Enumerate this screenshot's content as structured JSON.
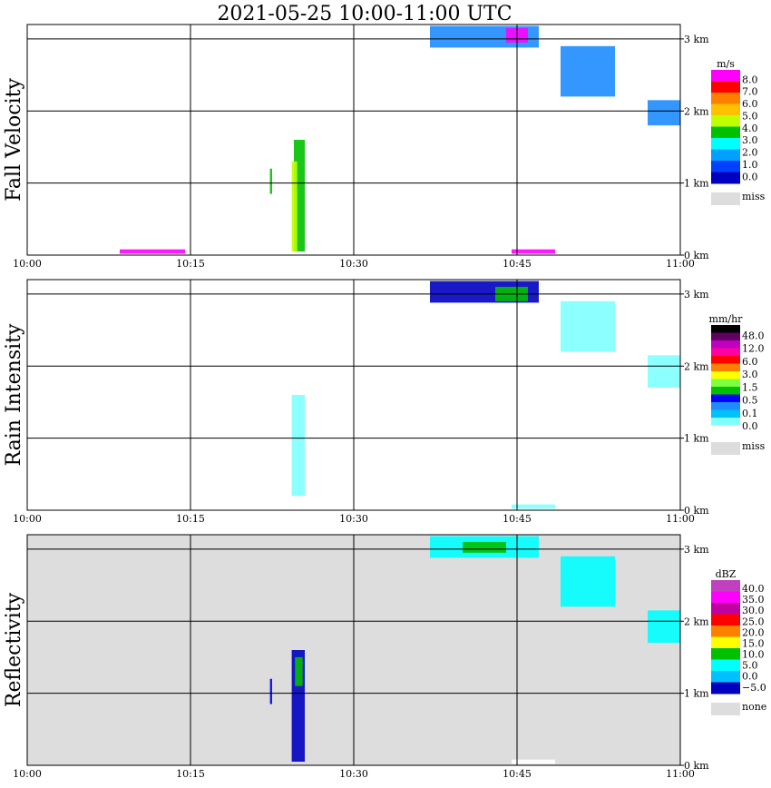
{
  "title": "2021-05-25  10:00-11:00 UTC",
  "chart_data": [
    {
      "type": "heatmap",
      "title": "Fall Velocity",
      "x_ticks": [
        "10:00",
        "10:15",
        "10:30",
        "10:45",
        "11:00"
      ],
      "xlim": [
        "10:00",
        "11:00"
      ],
      "y_ticks": [
        "0 km",
        "1 km",
        "2 km",
        "3 km"
      ],
      "ylim_km": [
        0,
        3.2
      ],
      "grid": true,
      "background": "#ffffff",
      "legend_position": "right",
      "colorbar": {
        "unit": "m/s",
        "labels": [
          "8.0",
          "7.0",
          "6.0",
          "5.0",
          "4.0",
          "3.0",
          "2.0",
          "1.0",
          "0.0"
        ],
        "colors": [
          "#ff00ff",
          "#ff0000",
          "#ff8000",
          "#ffc000",
          "#c0ff00",
          "#00c000",
          "#00ffff",
          "#00a0ff",
          "#0040ff",
          "#0000c0"
        ],
        "miss_label": "miss",
        "miss_color": "#dddddd"
      },
      "echoes": [
        {
          "t": 37,
          "h0": 2.88,
          "h1": 3.18,
          "t1": 47,
          "color": "#1e8cff"
        },
        {
          "t": 44,
          "h0": 2.95,
          "h1": 3.15,
          "t1": 46,
          "color": "#ff00ff"
        },
        {
          "t": 49,
          "h0": 2.2,
          "h1": 2.9,
          "t1": 54,
          "color": "#1e8cff"
        },
        {
          "t": 57,
          "h0": 1.8,
          "h1": 2.15,
          "t1": 60,
          "color": "#1e8cff"
        },
        {
          "t": 24.5,
          "h0": 0.05,
          "h1": 1.6,
          "t1": 25.5,
          "color": "#00c000"
        },
        {
          "t": 24.3,
          "h0": 0.05,
          "h1": 1.3,
          "t1": 24.8,
          "color": "#c0ff00"
        },
        {
          "t": 22.3,
          "h0": 0.85,
          "h1": 1.2,
          "t1": 22.5,
          "color": "#00c000"
        },
        {
          "t": 44.5,
          "h0": 0.02,
          "h1": 0.08,
          "t1": 48.5,
          "color": "#ff00ff"
        },
        {
          "t": 8.5,
          "h0": 0.02,
          "h1": 0.08,
          "t1": 14.5,
          "color": "#ff00ff"
        }
      ]
    },
    {
      "type": "heatmap",
      "title": "Rain Intensity",
      "x_ticks": [
        "10:00",
        "10:15",
        "10:30",
        "10:45",
        "11:00"
      ],
      "xlim": [
        "10:00",
        "11:00"
      ],
      "y_ticks": [
        "0 km",
        "1 km",
        "2 km",
        "3 km"
      ],
      "ylim_km": [
        0,
        3.2
      ],
      "grid": true,
      "background": "#ffffff",
      "legend_position": "right",
      "colorbar": {
        "unit": "mm/hr",
        "labels": [
          "48.0",
          "12.0",
          "6.0",
          "3.0",
          "1.5",
          "0.5",
          "0.1",
          "0.0"
        ],
        "colors": [
          "#000000",
          "#600060",
          "#c000c0",
          "#ff00a0",
          "#ff0000",
          "#ff8000",
          "#ffff00",
          "#80ff40",
          "#00c000",
          "#0000ff",
          "#1e8cff",
          "#00c0ff",
          "#80ffff",
          "#ffffff"
        ],
        "miss_label": "miss",
        "miss_color": "#dddddd"
      },
      "echoes": [
        {
          "t": 37,
          "h0": 2.88,
          "h1": 3.18,
          "t1": 47,
          "color": "#0000c0"
        },
        {
          "t": 43,
          "h0": 2.9,
          "h1": 3.1,
          "t1": 46,
          "color": "#00c000"
        },
        {
          "t": 49,
          "h0": 2.2,
          "h1": 2.9,
          "t1": 54,
          "color": "#80ffff"
        },
        {
          "t": 57,
          "h0": 1.7,
          "h1": 2.15,
          "t1": 60,
          "color": "#80ffff"
        },
        {
          "t": 24.3,
          "h0": 0.2,
          "h1": 1.6,
          "t1": 25.5,
          "color": "#80ffff"
        },
        {
          "t": 44.5,
          "h0": 0.02,
          "h1": 0.08,
          "t1": 48.5,
          "color": "#80ffff"
        }
      ]
    },
    {
      "type": "heatmap",
      "title": "Reflectivity",
      "x_ticks": [
        "10:00",
        "10:15",
        "10:30",
        "10:45",
        "11:00"
      ],
      "xlim": [
        "10:00",
        "11:00"
      ],
      "y_ticks": [
        "0 km",
        "1 km",
        "2 km",
        "3 km"
      ],
      "ylim_km": [
        0,
        3.2
      ],
      "grid": true,
      "background": "#dddddd",
      "legend_position": "right",
      "colorbar": {
        "unit": "dBZ",
        "labels": [
          "40.0",
          "35.0",
          "30.0",
          "25.0",
          "20.0",
          "15.0",
          "10.0",
          "5.0",
          "0.0",
          "−5.0"
        ],
        "colors": [
          "#c040c0",
          "#ff00ff",
          "#c000a0",
          "#ff0000",
          "#ff8000",
          "#ffff00",
          "#00c000",
          "#00ffff",
          "#00c0ff",
          "#0000c0"
        ],
        "miss_label": "none",
        "miss_color": "#dddddd"
      },
      "echoes": [
        {
          "t": 37,
          "h0": 2.88,
          "h1": 3.18,
          "t1": 47,
          "color": "#00ffff"
        },
        {
          "t": 40,
          "h0": 2.95,
          "h1": 3.1,
          "t1": 44,
          "color": "#00c000"
        },
        {
          "t": 49,
          "h0": 2.2,
          "h1": 2.9,
          "t1": 54,
          "color": "#00ffff"
        },
        {
          "t": 57,
          "h0": 1.7,
          "h1": 2.15,
          "t1": 60,
          "color": "#00ffff"
        },
        {
          "t": 24.3,
          "h0": 0.05,
          "h1": 1.6,
          "t1": 25.5,
          "color": "#0000c0"
        },
        {
          "t": 24.6,
          "h0": 1.1,
          "h1": 1.5,
          "t1": 25.3,
          "color": "#00c000"
        },
        {
          "t": 22.3,
          "h0": 0.85,
          "h1": 1.2,
          "t1": 22.5,
          "color": "#0000ff"
        },
        {
          "t": 44.5,
          "h0": 0.02,
          "h1": 0.08,
          "t1": 48.5,
          "color": "#ffffff"
        }
      ]
    }
  ]
}
